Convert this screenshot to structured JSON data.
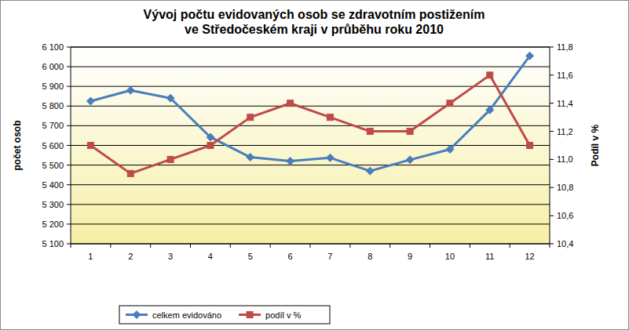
{
  "chart_data": {
    "type": "line",
    "title": "Vývoj počtu evidovaných osob se zdravotním postižením\nve Středočeském kraji v průběhu roku 2010",
    "y_label": "počet osob",
    "y2_label": "Podíl v %",
    "categories": [
      "1",
      "2",
      "3",
      "4",
      "5",
      "6",
      "7",
      "8",
      "9",
      "10",
      "11",
      "12"
    ],
    "series": [
      {
        "name": "celkem evidováno",
        "color": "#4a7ebb",
        "marker": "diamond",
        "line_style": "solid",
        "values": [
          5825,
          5880,
          5840,
          5642,
          5540,
          5520,
          5537,
          5470,
          5527,
          5580,
          5780,
          6055
        ]
      },
      {
        "name": "podíl v %",
        "color": "#be4b48",
        "marker": "square",
        "line_style": "solid",
        "axis": "y2",
        "values": [
          11.1,
          10.9,
          11.0,
          11.1,
          11.3,
          11.4,
          11.3,
          11.2,
          11.2,
          11.4,
          11.6,
          11.1
        ]
      }
    ],
    "ylim": [
      5100,
      6100
    ],
    "yticks": [
      {
        "value": 5100,
        "label": "5 100"
      },
      {
        "value": 5200,
        "label": "5 200"
      },
      {
        "value": 5300,
        "label": "5 300"
      },
      {
        "value": 5400,
        "label": "5 400"
      },
      {
        "value": 5500,
        "label": "5 500"
      },
      {
        "value": 5600,
        "label": "5 600"
      },
      {
        "value": 5700,
        "label": "5 700"
      },
      {
        "value": 5800,
        "label": "5 800"
      },
      {
        "value": 5900,
        "label": "5 900"
      },
      {
        "value": 6000,
        "label": "6 000"
      },
      {
        "value": 6100,
        "label": "6 100"
      }
    ],
    "y2lim": [
      10.4,
      11.8
    ],
    "y2ticks": [
      {
        "value": 10.4,
        "label": "10,4"
      },
      {
        "value": 10.6,
        "label": "10,6"
      },
      {
        "value": 10.8,
        "label": "10,8"
      },
      {
        "value": 11.0,
        "label": "11,0"
      },
      {
        "value": 11.2,
        "label": "11,2"
      },
      {
        "value": 11.4,
        "label": "11,4"
      },
      {
        "value": 11.6,
        "label": "11,6"
      },
      {
        "value": 11.8,
        "label": "11,8"
      }
    ],
    "grid": true,
    "legend": "bottom"
  }
}
